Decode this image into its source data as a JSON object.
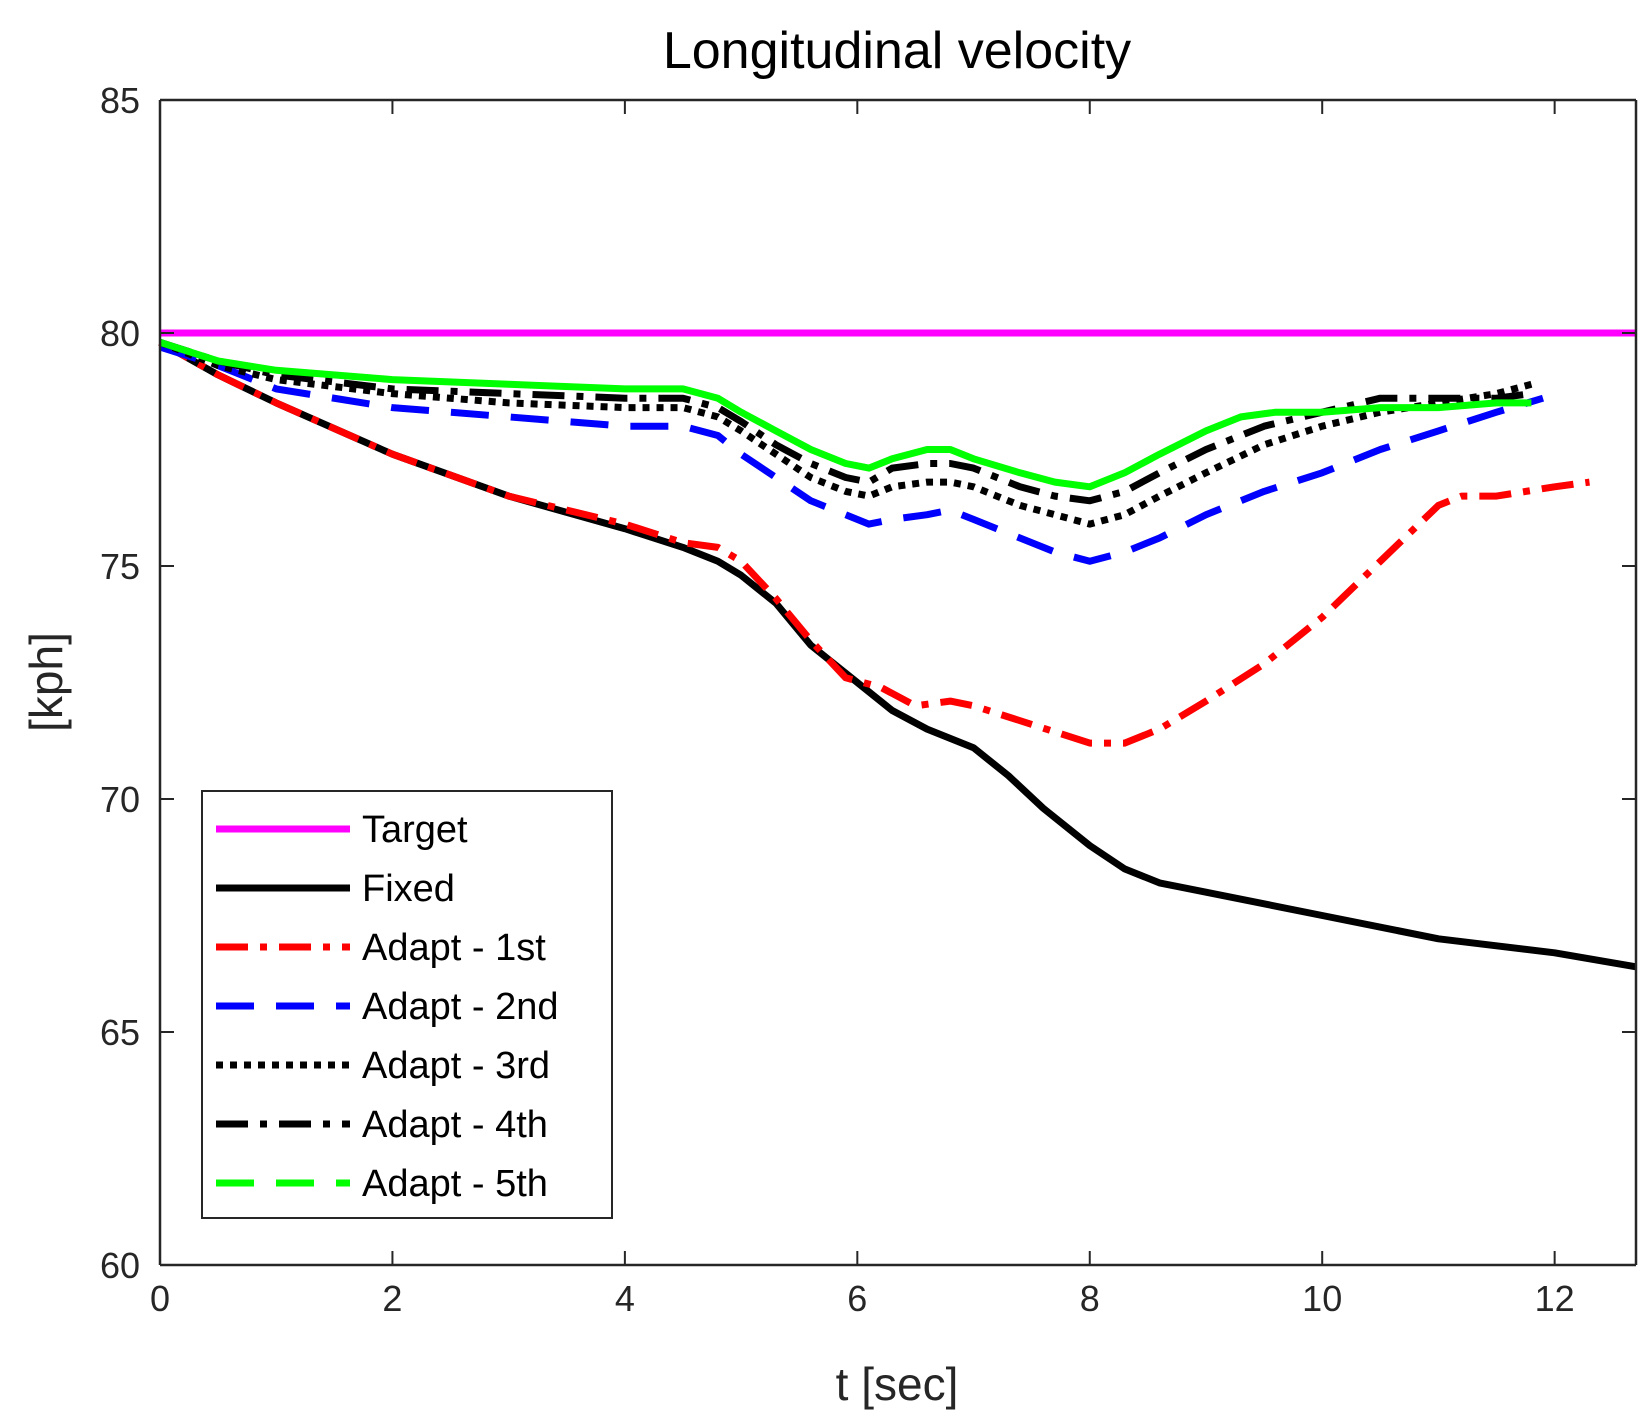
{
  "chart_data": {
    "type": "line",
    "title": "Longitudinal velocity",
    "xlabel": "t [sec]",
    "ylabel": "[kph]",
    "xlim": [
      0,
      12.7
    ],
    "ylim": [
      60,
      85
    ],
    "xticks": [
      0,
      2,
      4,
      6,
      8,
      10,
      12
    ],
    "yticks": [
      60,
      65,
      70,
      75,
      80,
      85
    ],
    "xtick_labels": [
      "0",
      "2",
      "4",
      "6",
      "8",
      "10",
      "12"
    ],
    "ytick_labels": [
      "60",
      "65",
      "70",
      "75",
      "80",
      "85"
    ],
    "legend_position": "bottom-left",
    "series": [
      {
        "name": "Target",
        "color": "#ff00ff",
        "style": "solid",
        "x": [
          0,
          12.7
        ],
        "y": [
          80,
          80
        ]
      },
      {
        "name": "Fixed",
        "color": "#000000",
        "style": "solid",
        "x": [
          0,
          0.5,
          1,
          2,
          3,
          4,
          4.5,
          4.8,
          5.0,
          5.3,
          5.6,
          6.0,
          6.3,
          6.6,
          7.0,
          7.3,
          7.6,
          8.0,
          8.3,
          8.6,
          9.0,
          10.0,
          11.0,
          12.0,
          12.7
        ],
        "y": [
          79.8,
          79.1,
          78.5,
          77.4,
          76.5,
          75.8,
          75.4,
          75.1,
          74.8,
          74.2,
          73.3,
          72.5,
          71.9,
          71.5,
          71.1,
          70.5,
          69.8,
          69.0,
          68.5,
          68.2,
          68.0,
          67.5,
          67.0,
          66.7,
          66.4
        ]
      },
      {
        "name": "Adapt - 1st",
        "color": "#ff0000",
        "style": "dashdot",
        "x": [
          0,
          0.5,
          1,
          2,
          3,
          4,
          4.5,
          4.8,
          5.0,
          5.3,
          5.6,
          5.9,
          6.2,
          6.5,
          6.8,
          7.0,
          7.5,
          8.0,
          8.3,
          8.6,
          9.0,
          9.5,
          10.0,
          10.5,
          11.0,
          11.2,
          11.5,
          12.0,
          12.3
        ],
        "y": [
          79.8,
          79.1,
          78.5,
          77.4,
          76.5,
          75.9,
          75.5,
          75.4,
          75.1,
          74.3,
          73.4,
          72.6,
          72.4,
          72.0,
          72.1,
          72.0,
          71.6,
          71.2,
          71.2,
          71.5,
          72.1,
          72.9,
          73.9,
          75.1,
          76.3,
          76.5,
          76.5,
          76.7,
          76.8
        ]
      },
      {
        "name": "Adapt - 2nd",
        "color": "#0000ff",
        "style": "dashed",
        "x": [
          0,
          0.5,
          1,
          2,
          3,
          4,
          4.5,
          4.8,
          5.0,
          5.3,
          5.6,
          5.9,
          6.1,
          6.3,
          6.6,
          6.8,
          7.0,
          7.4,
          7.7,
          8.0,
          8.3,
          8.6,
          9.0,
          9.5,
          10.0,
          10.5,
          11.0,
          11.5,
          11.9
        ],
        "y": [
          79.7,
          79.3,
          78.8,
          78.4,
          78.2,
          78.0,
          78.0,
          77.8,
          77.4,
          76.9,
          76.4,
          76.1,
          75.9,
          76.0,
          76.1,
          76.2,
          76.0,
          75.6,
          75.3,
          75.1,
          75.3,
          75.6,
          76.1,
          76.6,
          77.0,
          77.5,
          77.9,
          78.3,
          78.6
        ]
      },
      {
        "name": "Adapt - 3rd",
        "color": "#000000",
        "style": "dotted",
        "x": [
          0,
          0.5,
          1,
          2,
          3,
          4,
          4.5,
          4.8,
          5.0,
          5.3,
          5.6,
          5.9,
          6.1,
          6.3,
          6.6,
          6.8,
          7.0,
          7.4,
          7.7,
          8.0,
          8.3,
          8.6,
          9.0,
          9.5,
          10.0,
          10.5,
          11.0,
          11.5,
          11.8
        ],
        "y": [
          79.8,
          79.3,
          79.0,
          78.7,
          78.5,
          78.4,
          78.4,
          78.2,
          77.9,
          77.4,
          76.9,
          76.6,
          76.5,
          76.7,
          76.8,
          76.8,
          76.7,
          76.3,
          76.1,
          75.9,
          76.1,
          76.5,
          77.0,
          77.6,
          78.0,
          78.3,
          78.5,
          78.7,
          78.9
        ]
      },
      {
        "name": "Adapt - 4th",
        "color": "#000000",
        "style": "dashdot",
        "x": [
          0,
          0.5,
          1,
          2,
          3,
          4,
          4.5,
          4.8,
          5.0,
          5.3,
          5.6,
          5.9,
          6.1,
          6.3,
          6.6,
          6.8,
          7.0,
          7.4,
          7.7,
          8.0,
          8.3,
          8.6,
          9.0,
          9.5,
          10.0,
          10.5,
          11.0,
          11.5,
          11.8
        ],
        "y": [
          79.8,
          79.4,
          79.1,
          78.8,
          78.7,
          78.6,
          78.6,
          78.4,
          78.1,
          77.6,
          77.2,
          76.9,
          76.8,
          77.1,
          77.2,
          77.2,
          77.1,
          76.7,
          76.5,
          76.4,
          76.6,
          77.0,
          77.5,
          78.0,
          78.3,
          78.6,
          78.6,
          78.6,
          78.7
        ]
      },
      {
        "name": "Adapt - 5th",
        "color": "#00ff00",
        "style": "dashed",
        "draw_style": "solid",
        "x": [
          0,
          0.5,
          1,
          2,
          3,
          4,
          4.5,
          4.8,
          5.0,
          5.3,
          5.6,
          5.9,
          6.1,
          6.3,
          6.6,
          6.8,
          7.0,
          7.4,
          7.7,
          8.0,
          8.3,
          8.6,
          9.0,
          9.3,
          9.6,
          10.0,
          10.5,
          11.0,
          11.5,
          11.8
        ],
        "y": [
          79.8,
          79.4,
          79.2,
          79.0,
          78.9,
          78.8,
          78.8,
          78.6,
          78.3,
          77.9,
          77.5,
          77.2,
          77.1,
          77.3,
          77.5,
          77.5,
          77.3,
          77.0,
          76.8,
          76.7,
          77.0,
          77.4,
          77.9,
          78.2,
          78.3,
          78.3,
          78.4,
          78.4,
          78.5,
          78.5
        ]
      }
    ]
  }
}
